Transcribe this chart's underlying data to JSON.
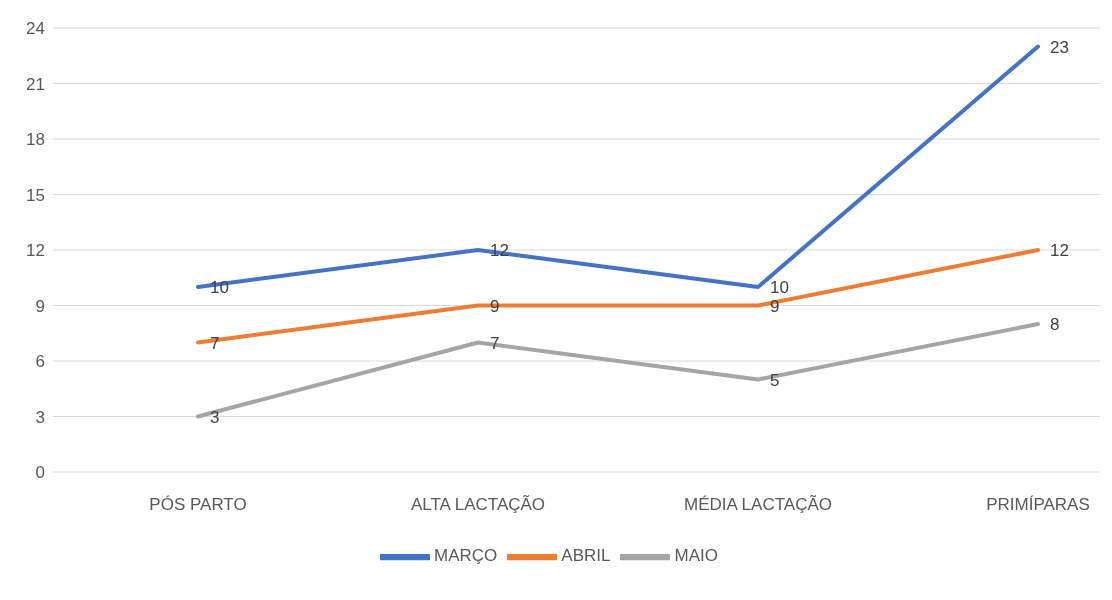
{
  "chart_data": {
    "type": "line",
    "categories": [
      "PÓS PARTO",
      "ALTA LACTAÇÃO",
      "MÉDIA LACTAÇÃO",
      "PRIMÍPARAS"
    ],
    "series": [
      {
        "name": "MARÇO",
        "color": "#4472c4",
        "values": [
          10,
          12,
          10,
          23
        ]
      },
      {
        "name": "ABRIL",
        "color": "#ed7d31",
        "values": [
          7,
          9,
          9,
          12
        ]
      },
      {
        "name": "MAIO",
        "color": "#a5a5a5",
        "values": [
          3,
          7,
          5,
          8
        ]
      }
    ],
    "ylim": [
      0,
      24
    ],
    "yticks": [
      0,
      3,
      6,
      9,
      12,
      15,
      18,
      21,
      24
    ],
    "grid": "y",
    "legend": "bottom",
    "data_labels": true
  }
}
